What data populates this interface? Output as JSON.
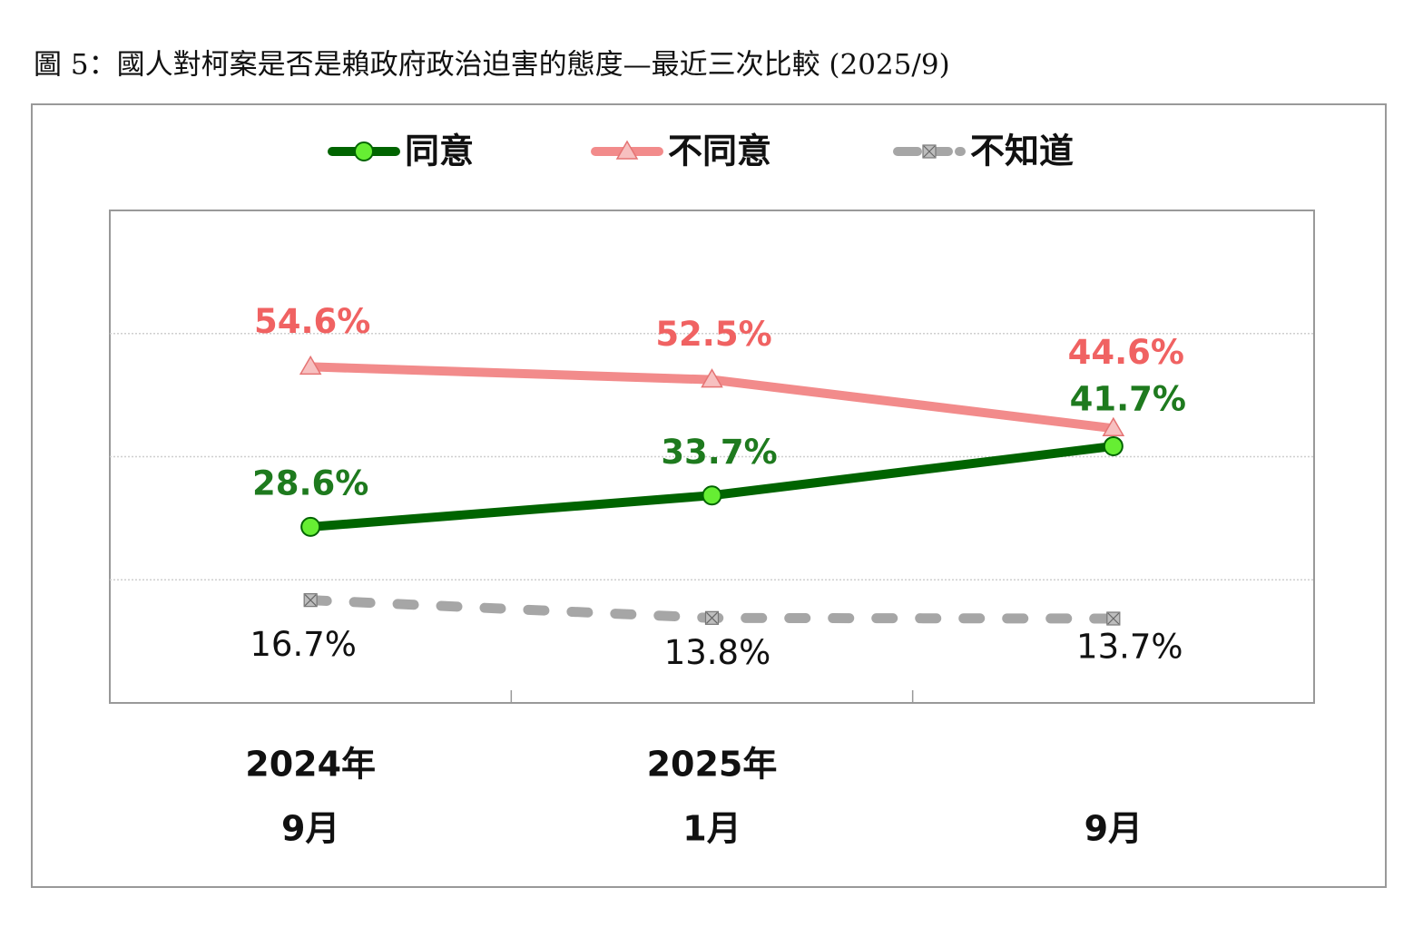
{
  "chart_data": {
    "type": "line",
    "title": "圖 5：國人對柯案是否是賴政府政治迫害的態度—最近三次比較 (2025/9)",
    "categories": [
      "9月",
      "1月",
      "9月"
    ],
    "category_years": [
      "2024年",
      "2025年",
      null
    ],
    "ylim": [
      0,
      80
    ],
    "yticks": [
      20,
      40,
      60
    ],
    "grid": true,
    "series": [
      {
        "name": "同意",
        "color": "#006400",
        "marker_color": "#66ee33",
        "marker": "circle",
        "label_color": "#1e7a1e",
        "values": [
          28.6,
          33.7,
          41.7
        ],
        "value_labels": [
          "28.6%",
          "33.7%",
          "41.7%"
        ]
      },
      {
        "name": "不同意",
        "color": "#f28b8b",
        "marker_color": "#f7c0c0",
        "marker": "triangle",
        "label_color": "#f06262",
        "values": [
          54.6,
          52.5,
          44.6
        ],
        "value_labels": [
          "54.6%",
          "52.5%",
          "44.6%"
        ]
      },
      {
        "name": "不知道",
        "color": "#a6a6a6",
        "marker_color": "#bdbdbd",
        "marker": "square",
        "label_color": "#111111",
        "dashed": true,
        "values": [
          16.7,
          13.8,
          13.7
        ],
        "value_labels": [
          "16.7%",
          "13.8%",
          "13.7%"
        ]
      }
    ]
  }
}
